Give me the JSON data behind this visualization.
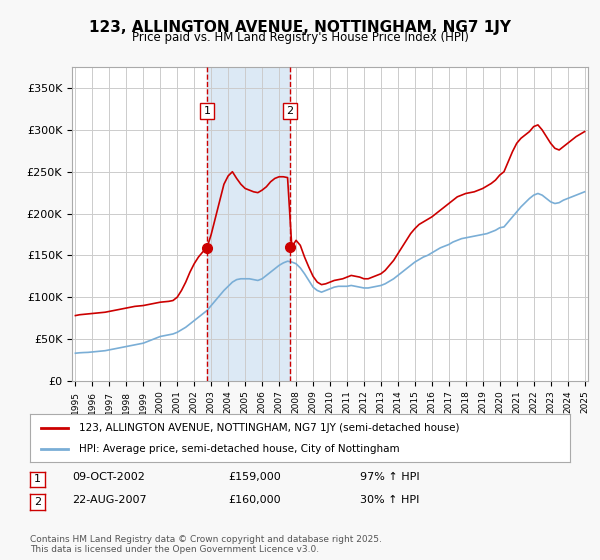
{
  "title": "123, ALLINGTON AVENUE, NOTTINGHAM, NG7 1JY",
  "subtitle": "Price paid vs. HM Land Registry's House Price Index (HPI)",
  "background_color": "#f8f8f8",
  "plot_bg_color": "#ffffff",
  "x_start_year": 1995,
  "x_end_year": 2025,
  "ylim": [
    0,
    375000
  ],
  "yticks": [
    0,
    50000,
    100000,
    150000,
    200000,
    250000,
    300000,
    350000
  ],
  "ytick_labels": [
    "£0",
    "£50K",
    "£100K",
    "£150K",
    "£200K",
    "£250K",
    "£300K",
    "£350K"
  ],
  "grid_color": "#cccccc",
  "hpi_line_color": "#7aaed6",
  "price_line_color": "#cc0000",
  "sale1_date": 2002.77,
  "sale1_price": 159000,
  "sale1_label": "1",
  "sale2_date": 2007.64,
  "sale2_price": 160000,
  "sale2_label": "2",
  "shade_color": "#dce9f5",
  "vline_color": "#cc0000",
  "legend_price_label": "123, ALLINGTON AVENUE, NOTTINGHAM, NG7 1JY (semi-detached house)",
  "legend_hpi_label": "HPI: Average price, semi-detached house, City of Nottingham",
  "annotation1": "1    09-OCT-2002         £159,000         97% ↑ HPI",
  "annotation2": "2    22-AUG-2007         £160,000         30% ↑ HPI",
  "footnote": "Contains HM Land Registry data © Crown copyright and database right 2025.\nThis data is licensed under the Open Government Licence v3.0.",
  "hpi_data_x": [
    1995.0,
    1995.25,
    1995.5,
    1995.75,
    1996.0,
    1996.25,
    1996.5,
    1996.75,
    1997.0,
    1997.25,
    1997.5,
    1997.75,
    1998.0,
    1998.25,
    1998.5,
    1998.75,
    1999.0,
    1999.25,
    1999.5,
    1999.75,
    2000.0,
    2000.25,
    2000.5,
    2000.75,
    2001.0,
    2001.25,
    2001.5,
    2001.75,
    2002.0,
    2002.25,
    2002.5,
    2002.75,
    2003.0,
    2003.25,
    2003.5,
    2003.75,
    2004.0,
    2004.25,
    2004.5,
    2004.75,
    2005.0,
    2005.25,
    2005.5,
    2005.75,
    2006.0,
    2006.25,
    2006.5,
    2006.75,
    2007.0,
    2007.25,
    2007.5,
    2007.75,
    2008.0,
    2008.25,
    2008.5,
    2008.75,
    2009.0,
    2009.25,
    2009.5,
    2009.75,
    2010.0,
    2010.25,
    2010.5,
    2010.75,
    2011.0,
    2011.25,
    2011.5,
    2011.75,
    2012.0,
    2012.25,
    2012.5,
    2012.75,
    2013.0,
    2013.25,
    2013.5,
    2013.75,
    2014.0,
    2014.25,
    2014.5,
    2014.75,
    2015.0,
    2015.25,
    2015.5,
    2015.75,
    2016.0,
    2016.25,
    2016.5,
    2016.75,
    2017.0,
    2017.25,
    2017.5,
    2017.75,
    2018.0,
    2018.25,
    2018.5,
    2018.75,
    2019.0,
    2019.25,
    2019.5,
    2019.75,
    2020.0,
    2020.25,
    2020.5,
    2020.75,
    2021.0,
    2021.25,
    2021.5,
    2021.75,
    2022.0,
    2022.25,
    2022.5,
    2022.75,
    2023.0,
    2023.25,
    2023.5,
    2023.75,
    2024.0,
    2024.25,
    2024.5,
    2024.75,
    2025.0
  ],
  "hpi_data_y": [
    33000,
    33500,
    33800,
    34000,
    34500,
    35000,
    35500,
    36000,
    37000,
    38000,
    39000,
    40000,
    41000,
    42000,
    43000,
    44000,
    45000,
    47000,
    49000,
    51000,
    53000,
    54000,
    55000,
    56000,
    58000,
    61000,
    64000,
    68000,
    72000,
    76000,
    80000,
    84000,
    90000,
    96000,
    102000,
    108000,
    113000,
    118000,
    121000,
    122000,
    122000,
    122000,
    121000,
    120000,
    122000,
    126000,
    130000,
    134000,
    138000,
    141000,
    143000,
    142000,
    140000,
    135000,
    128000,
    120000,
    112000,
    108000,
    106000,
    108000,
    110000,
    112000,
    113000,
    113000,
    113000,
    114000,
    113000,
    112000,
    111000,
    111000,
    112000,
    113000,
    114000,
    116000,
    119000,
    122000,
    126000,
    130000,
    134000,
    138000,
    142000,
    145000,
    148000,
    150000,
    153000,
    156000,
    159000,
    161000,
    163000,
    166000,
    168000,
    170000,
    171000,
    172000,
    173000,
    174000,
    175000,
    176000,
    178000,
    180000,
    183000,
    184000,
    190000,
    196000,
    202000,
    208000,
    213000,
    218000,
    222000,
    224000,
    222000,
    218000,
    214000,
    212000,
    213000,
    216000,
    218000,
    220000,
    222000,
    224000,
    226000
  ],
  "price_data_x": [
    1995.0,
    1995.25,
    1995.5,
    1995.75,
    1996.0,
    1996.25,
    1996.5,
    1996.75,
    1997.0,
    1997.25,
    1997.5,
    1997.75,
    1998.0,
    1998.25,
    1998.5,
    1998.75,
    1999.0,
    1999.25,
    1999.5,
    1999.75,
    2000.0,
    2000.25,
    2000.5,
    2000.75,
    2001.0,
    2001.25,
    2001.5,
    2001.75,
    2002.0,
    2002.25,
    2002.5,
    2002.75,
    2003.0,
    2003.25,
    2003.5,
    2003.75,
    2004.0,
    2004.25,
    2004.5,
    2004.75,
    2005.0,
    2005.25,
    2005.5,
    2005.75,
    2006.0,
    2006.25,
    2006.5,
    2006.75,
    2007.0,
    2007.25,
    2007.5,
    2007.75,
    2008.0,
    2008.25,
    2008.5,
    2008.75,
    2009.0,
    2009.25,
    2009.5,
    2009.75,
    2010.0,
    2010.25,
    2010.5,
    2010.75,
    2011.0,
    2011.25,
    2011.5,
    2011.75,
    2012.0,
    2012.25,
    2012.5,
    2012.75,
    2013.0,
    2013.25,
    2013.5,
    2013.75,
    2014.0,
    2014.25,
    2014.5,
    2014.75,
    2015.0,
    2015.25,
    2015.5,
    2015.75,
    2016.0,
    2016.25,
    2016.5,
    2016.75,
    2017.0,
    2017.25,
    2017.5,
    2017.75,
    2018.0,
    2018.25,
    2018.5,
    2018.75,
    2019.0,
    2019.25,
    2019.5,
    2019.75,
    2020.0,
    2020.25,
    2020.5,
    2020.75,
    2021.0,
    2021.25,
    2021.5,
    2021.75,
    2022.0,
    2022.25,
    2022.5,
    2022.75,
    2023.0,
    2023.25,
    2023.5,
    2023.75,
    2024.0,
    2024.25,
    2024.5,
    2024.75,
    2025.0
  ],
  "price_data_y": [
    78000,
    79000,
    79500,
    80000,
    80500,
    81000,
    81500,
    82000,
    83000,
    84000,
    85000,
    86000,
    87000,
    88000,
    89000,
    89500,
    90000,
    91000,
    92000,
    93000,
    94000,
    94500,
    95000,
    96000,
    100000,
    108000,
    118000,
    130000,
    140000,
    148000,
    154000,
    159000,
    175000,
    195000,
    215000,
    235000,
    245000,
    250000,
    242000,
    235000,
    230000,
    228000,
    226000,
    225000,
    228000,
    232000,
    238000,
    242000,
    244000,
    244000,
    243000,
    160000,
    168000,
    162000,
    148000,
    136000,
    125000,
    118000,
    115000,
    116000,
    118000,
    120000,
    121000,
    122000,
    124000,
    126000,
    125000,
    124000,
    122000,
    122000,
    124000,
    126000,
    128000,
    132000,
    138000,
    144000,
    152000,
    160000,
    168000,
    176000,
    182000,
    187000,
    190000,
    193000,
    196000,
    200000,
    204000,
    208000,
    212000,
    216000,
    220000,
    222000,
    224000,
    225000,
    226000,
    228000,
    230000,
    233000,
    236000,
    240000,
    246000,
    250000,
    262000,
    274000,
    284000,
    290000,
    294000,
    298000,
    304000,
    306000,
    300000,
    292000,
    284000,
    278000,
    276000,
    280000,
    284000,
    288000,
    292000,
    295000,
    298000
  ]
}
